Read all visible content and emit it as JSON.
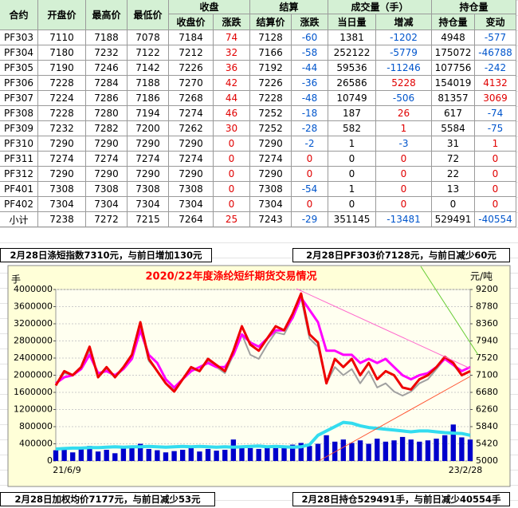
{
  "table": {
    "group_headers": [
      "收盘",
      "结算",
      "成交量（手）",
      "持仓量"
    ],
    "headers": [
      "合约",
      "开盘价",
      "最高价",
      "最低价",
      "收盘价",
      "涨跌",
      "结算价",
      "涨跌",
      "当日量",
      "增减",
      "持仓量",
      "变动"
    ],
    "rows": [
      [
        "PF303",
        7110,
        7188,
        7078,
        7184,
        74,
        7128,
        -60,
        1381,
        -1202,
        4948,
        -577
      ],
      [
        "PF304",
        7180,
        7232,
        7122,
        7212,
        32,
        7166,
        -58,
        252122,
        -5779,
        175072,
        -46788
      ],
      [
        "PF305",
        7190,
        7246,
        7142,
        7226,
        36,
        7192,
        -44,
        59536,
        -11246,
        107756,
        -242
      ],
      [
        "PF306",
        7228,
        7284,
        7188,
        7270,
        42,
        7226,
        -36,
        26586,
        5228,
        154019,
        4132
      ],
      [
        "PF307",
        7224,
        7286,
        7186,
        7268,
        44,
        7228,
        -48,
        10749,
        -506,
        81357,
        3069
      ],
      [
        "PF308",
        7228,
        7280,
        7194,
        7274,
        46,
        7252,
        -18,
        187,
        26,
        617,
        -74
      ],
      [
        "PF309",
        7232,
        7282,
        7200,
        7262,
        30,
        7252,
        -28,
        582,
        1,
        5584,
        -75
      ],
      [
        "PF310",
        7290,
        7290,
        7290,
        7290,
        0,
        7290,
        -2,
        1,
        -3,
        31,
        1
      ],
      [
        "PF311",
        7274,
        7274,
        7274,
        7274,
        0,
        7274,
        0,
        0,
        0,
        72,
        0
      ],
      [
        "PF312",
        7290,
        7290,
        7290,
        7290,
        0,
        7290,
        0,
        0,
        0,
        22,
        0
      ],
      [
        "PF401",
        7308,
        7308,
        7308,
        7308,
        0,
        7308,
        -54,
        1,
        0,
        13,
        0
      ],
      [
        "PF402",
        7304,
        7304,
        7304,
        7304,
        0,
        7304,
        0,
        0,
        0,
        0,
        0
      ],
      [
        "小计",
        7238,
        7272,
        7215,
        7264,
        25,
        7243,
        -29,
        351145,
        -13481,
        529491,
        -40554
      ]
    ]
  },
  "notes": [
    "2月28日涤短指数7310元，与前日增加130元",
    "2月28日PF303价7128元，与前日减少60元",
    "2月28日加权均价7177元，与前日减少53元",
    "2月28日持仓529491手，与前日减少40554手"
  ],
  "chart_data": {
    "type": "combo",
    "title": "2020/22年度涤纶短纤期货交易情况",
    "y_label": "手",
    "y2_label": "元/吨",
    "categories": [
      "21/6/9",
      null,
      null,
      null,
      null,
      null,
      null,
      null,
      null,
      null,
      null,
      null,
      null,
      null,
      null,
      null,
      null,
      null,
      null,
      null,
      null,
      null,
      null,
      null,
      null,
      null,
      null,
      null,
      null,
      null,
      null,
      null,
      null,
      null,
      null,
      null,
      null,
      null,
      null,
      null,
      null,
      null,
      null,
      null,
      null,
      null,
      null,
      null,
      null,
      "23/2/28"
    ],
    "ylim": [
      0,
      4000000
    ],
    "yticks": [
      0,
      400000,
      800000,
      1200000,
      1600000,
      2000000,
      2400000,
      2800000,
      3200000,
      3600000,
      4000000
    ],
    "y2lim": [
      5000,
      9200
    ],
    "y2ticks": [
      5000,
      5420,
      5840,
      6260,
      6680,
      7100,
      7520,
      7940,
      8360,
      8780,
      9200
    ],
    "grid": true,
    "series": [
      {
        "type": "bar",
        "axis": "y",
        "color": "#0000cc",
        "values": [
          250000,
          300000,
          200000,
          280000,
          350000,
          220000,
          260000,
          180000,
          300000,
          320000,
          400000,
          280000,
          250000,
          200000,
          230000,
          260000,
          300000,
          220000,
          280000,
          240000,
          260000,
          500000,
          350000,
          300000,
          280000,
          320000,
          300000,
          350000,
          380000,
          420000,
          350000,
          400000,
          600000,
          450000,
          500000,
          420000,
          480000,
          400000,
          520000,
          450000,
          480000,
          560000,
          500000,
          450000,
          480000,
          520000,
          600000,
          850000,
          550000,
          500000
        ]
      },
      {
        "type": "line",
        "axis": "y",
        "color": "#33dcef",
        "width": 4,
        "values": [
          280000,
          290000,
          300000,
          300000,
          310000,
          310000,
          320000,
          330000,
          320000,
          330000,
          330000,
          340000,
          330000,
          320000,
          330000,
          340000,
          330000,
          340000,
          330000,
          320000,
          330000,
          320000,
          330000,
          340000,
          350000,
          330000,
          340000,
          330000,
          320000,
          330000,
          380000,
          600000,
          700000,
          800000,
          900000,
          880000,
          820000,
          780000,
          760000,
          740000,
          720000,
          700000,
          680000,
          700000,
          700000,
          680000,
          660000,
          650000,
          640000,
          600000
        ]
      },
      {
        "type": "line",
        "axis": "y2",
        "color": "#a0a0a0",
        "width": 2,
        "values": [
          6850,
          7150,
          7100,
          7300,
          7700,
          7050,
          7250,
          7050,
          7250,
          7550,
          8300,
          7450,
          7200,
          6900,
          6750,
          7000,
          7250,
          7200,
          7450,
          7300,
          7150,
          7600,
          8100,
          7600,
          7500,
          7850,
          8150,
          8100,
          8500,
          9000,
          8000,
          7800,
          6900,
          7300,
          7100,
          7250,
          6900,
          7200,
          6800,
          6900,
          6700,
          6600,
          6700,
          6900,
          7000,
          7250,
          7500,
          7350,
          7100,
          7200
        ]
      },
      {
        "type": "line",
        "axis": "y2",
        "color": "#ff00ff",
        "width": 3,
        "values": [
          6900,
          7050,
          7100,
          7250,
          7600,
          7150,
          7200,
          7100,
          7250,
          7500,
          8200,
          7600,
          7400,
          7000,
          6800,
          7000,
          7200,
          7300,
          7400,
          7300,
          7300,
          7600,
          8100,
          7900,
          7800,
          8000,
          8200,
          8200,
          8500,
          9000,
          8700,
          8400,
          7700,
          7700,
          7600,
          7600,
          7400,
          7500,
          7400,
          7500,
          7300,
          7100,
          7000,
          7100,
          7150,
          7300,
          7500,
          7350,
          7200,
          7300
        ]
      },
      {
        "type": "line",
        "axis": "y2",
        "color": "#ee0000",
        "width": 3,
        "values": [
          6850,
          7200,
          7100,
          7300,
          7800,
          7050,
          7300,
          7050,
          7300,
          7600,
          8400,
          7500,
          7200,
          6900,
          6700,
          7000,
          7300,
          7200,
          7500,
          7350,
          7200,
          7700,
          8300,
          7850,
          7700,
          8000,
          8300,
          8200,
          8600,
          9100,
          8100,
          7900,
          6900,
          7500,
          7300,
          7500,
          7100,
          7400,
          7000,
          7200,
          7100,
          6800,
          6750,
          7000,
          7100,
          7300,
          7550,
          7400,
          7100,
          7200
        ]
      }
    ]
  }
}
